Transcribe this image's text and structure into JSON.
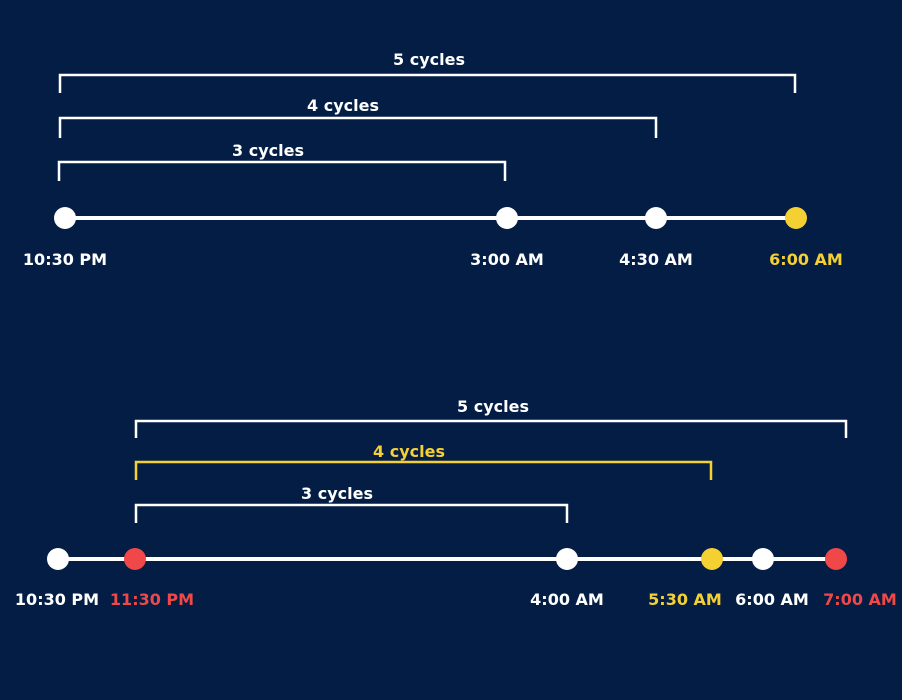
{
  "colors": {
    "background": "#031d44",
    "default": "#ffffff",
    "highlight": "#f5d033",
    "alert": "#f04848"
  },
  "timelines": [
    {
      "points": [
        {
          "label": "10:30 PM",
          "color": "default"
        },
        {
          "label": "3:00 AM",
          "color": "default"
        },
        {
          "label": "4:30 AM",
          "color": "default"
        },
        {
          "label": "6:00 AM",
          "color": "highlight"
        }
      ],
      "brackets": [
        {
          "label": "5 cycles",
          "color": "default"
        },
        {
          "label": "4 cycles",
          "color": "default"
        },
        {
          "label": "3 cycles",
          "color": "default"
        }
      ]
    },
    {
      "points": [
        {
          "label": "10:30 PM",
          "color": "default"
        },
        {
          "label": "11:30 PM",
          "color": "alert"
        },
        {
          "label": "4:00 AM",
          "color": "default"
        },
        {
          "label": "5:30 AM",
          "color": "highlight"
        },
        {
          "label": "6:00 AM",
          "color": "default"
        },
        {
          "label": "7:00 AM",
          "color": "alert"
        }
      ],
      "brackets": [
        {
          "label": "5 cycles",
          "color": "default"
        },
        {
          "label": "4 cycles",
          "color": "highlight"
        },
        {
          "label": "3 cycles",
          "color": "default"
        }
      ]
    }
  ]
}
